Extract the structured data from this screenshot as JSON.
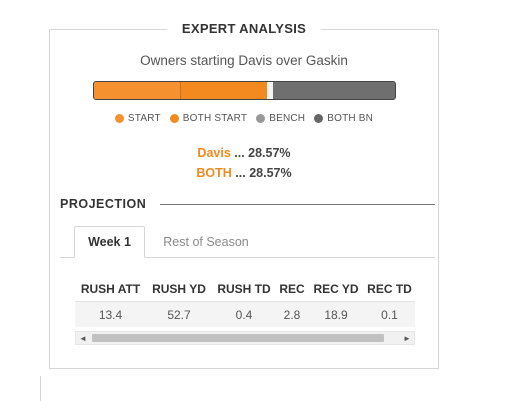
{
  "header": {
    "title": "EXPERT ANALYSIS"
  },
  "summary": {
    "subtitle": "Owners starting Davis over Gaskin",
    "bar": {
      "start": 0.2857,
      "both_start": 0.2857,
      "bench": 0.02,
      "both_bench": 0.4443
    },
    "legend": [
      {
        "label": "START",
        "color": "#f6912f"
      },
      {
        "label": "BOTH START",
        "color": "#f28a1f"
      },
      {
        "label": "BENCH",
        "color": "#999999"
      },
      {
        "label": "BOTH BN",
        "color": "#666666"
      }
    ],
    "davis_name": "Davis",
    "davis_sep": " ... ",
    "davis_value": "28.57%",
    "both_name": "BOTH",
    "both_sep": " ... ",
    "both_value": "28.57%"
  },
  "projection": {
    "heading": "PROJECTION",
    "tabs": [
      {
        "label": "Week 1"
      },
      {
        "label": "Rest of Season"
      }
    ],
    "columns": [
      "RUSH ATT",
      "RUSH YD",
      "RUSH TD",
      "REC",
      "REC YD",
      "REC TD"
    ],
    "values": [
      "13.4",
      "52.7",
      "0.4",
      "2.8",
      "18.9",
      "0.1"
    ]
  },
  "icons": {
    "scroll_left": "◄",
    "scroll_right": "►"
  }
}
